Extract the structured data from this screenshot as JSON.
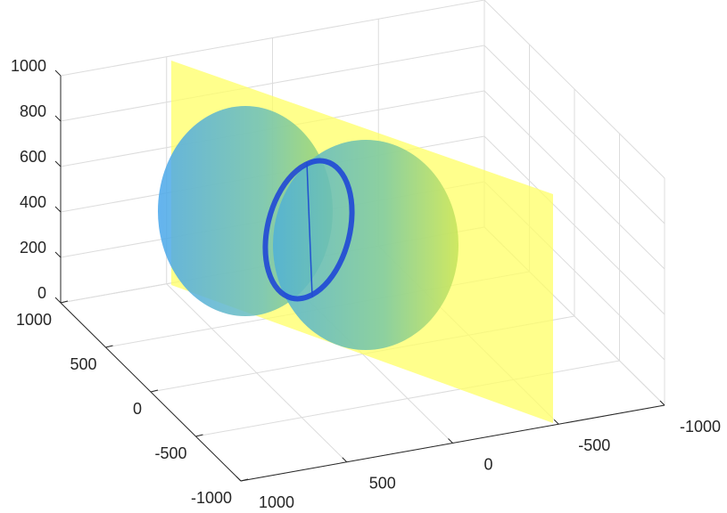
{
  "chart_data": {
    "type": "surface3d",
    "xlim": [
      -1000,
      1000
    ],
    "xticks": [
      -1000,
      -500,
      0,
      500,
      1000
    ],
    "ylim": [
      -1000,
      1000
    ],
    "yticks": [
      -1000,
      -500,
      0,
      500,
      1000
    ],
    "zlim": [
      0,
      1000
    ],
    "zticks": [
      0,
      200,
      400,
      600,
      800,
      1000
    ],
    "grid": true
  }
}
